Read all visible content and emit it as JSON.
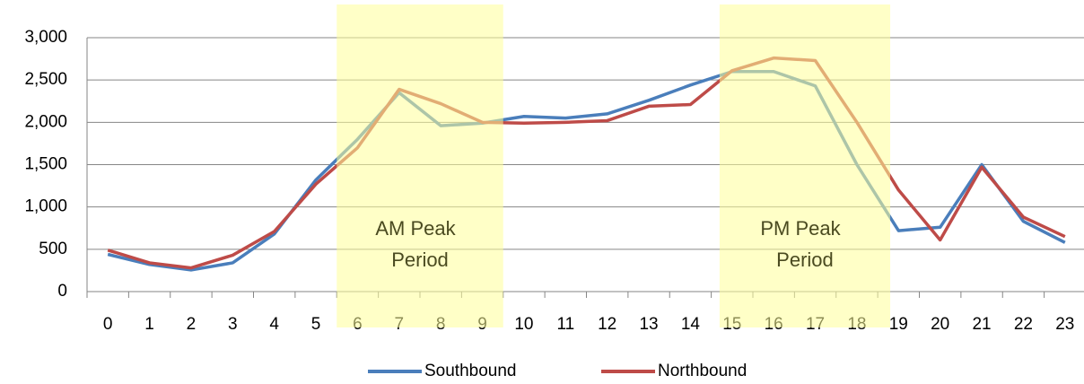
{
  "chart_data": {
    "type": "line",
    "categories": [
      "0",
      "1",
      "2",
      "3",
      "4",
      "5",
      "6",
      "7",
      "8",
      "9",
      "10",
      "11",
      "12",
      "13",
      "14",
      "15",
      "16",
      "17",
      "18",
      "19",
      "20",
      "21",
      "22",
      "23"
    ],
    "series": [
      {
        "name": "Southbound",
        "color": "#4a7ebb",
        "values": [
          440,
          320,
          255,
          340,
          680,
          1320,
          1800,
          2350,
          1960,
          1990,
          2070,
          2050,
          2100,
          2260,
          2440,
          2600,
          2600,
          2430,
          1500,
          720,
          760,
          1500,
          830,
          580
        ]
      },
      {
        "name": "Northbound",
        "color": "#be4b48",
        "values": [
          490,
          340,
          280,
          430,
          710,
          1270,
          1700,
          2390,
          2220,
          2000,
          1990,
          2000,
          2020,
          2190,
          2210,
          2610,
          2760,
          2730,
          2000,
          1200,
          610,
          1470,
          880,
          650
        ]
      }
    ],
    "ylim": [
      0,
      3000
    ],
    "yticks": [
      0,
      {
        "value": 500,
        "label": "500"
      },
      {
        "value": 1000,
        "label": "1,000"
      },
      {
        "value": 1500,
        "label": "1,500"
      },
      {
        "value": 2000,
        "label": "2,000"
      },
      {
        "value": 2500,
        "label": "2,500"
      },
      {
        "value": 3000,
        "label": "3,000"
      }
    ],
    "grid": true,
    "legend": "bottom",
    "regions": [
      {
        "label": [
          "AM Peak",
          "Period"
        ],
        "start": 5.5,
        "end": 9.5,
        "color": "#ffff99"
      },
      {
        "label": [
          "PM Peak",
          "Period"
        ],
        "start": 14.7,
        "end": 18.8,
        "color": "#ffff99"
      }
    ]
  }
}
